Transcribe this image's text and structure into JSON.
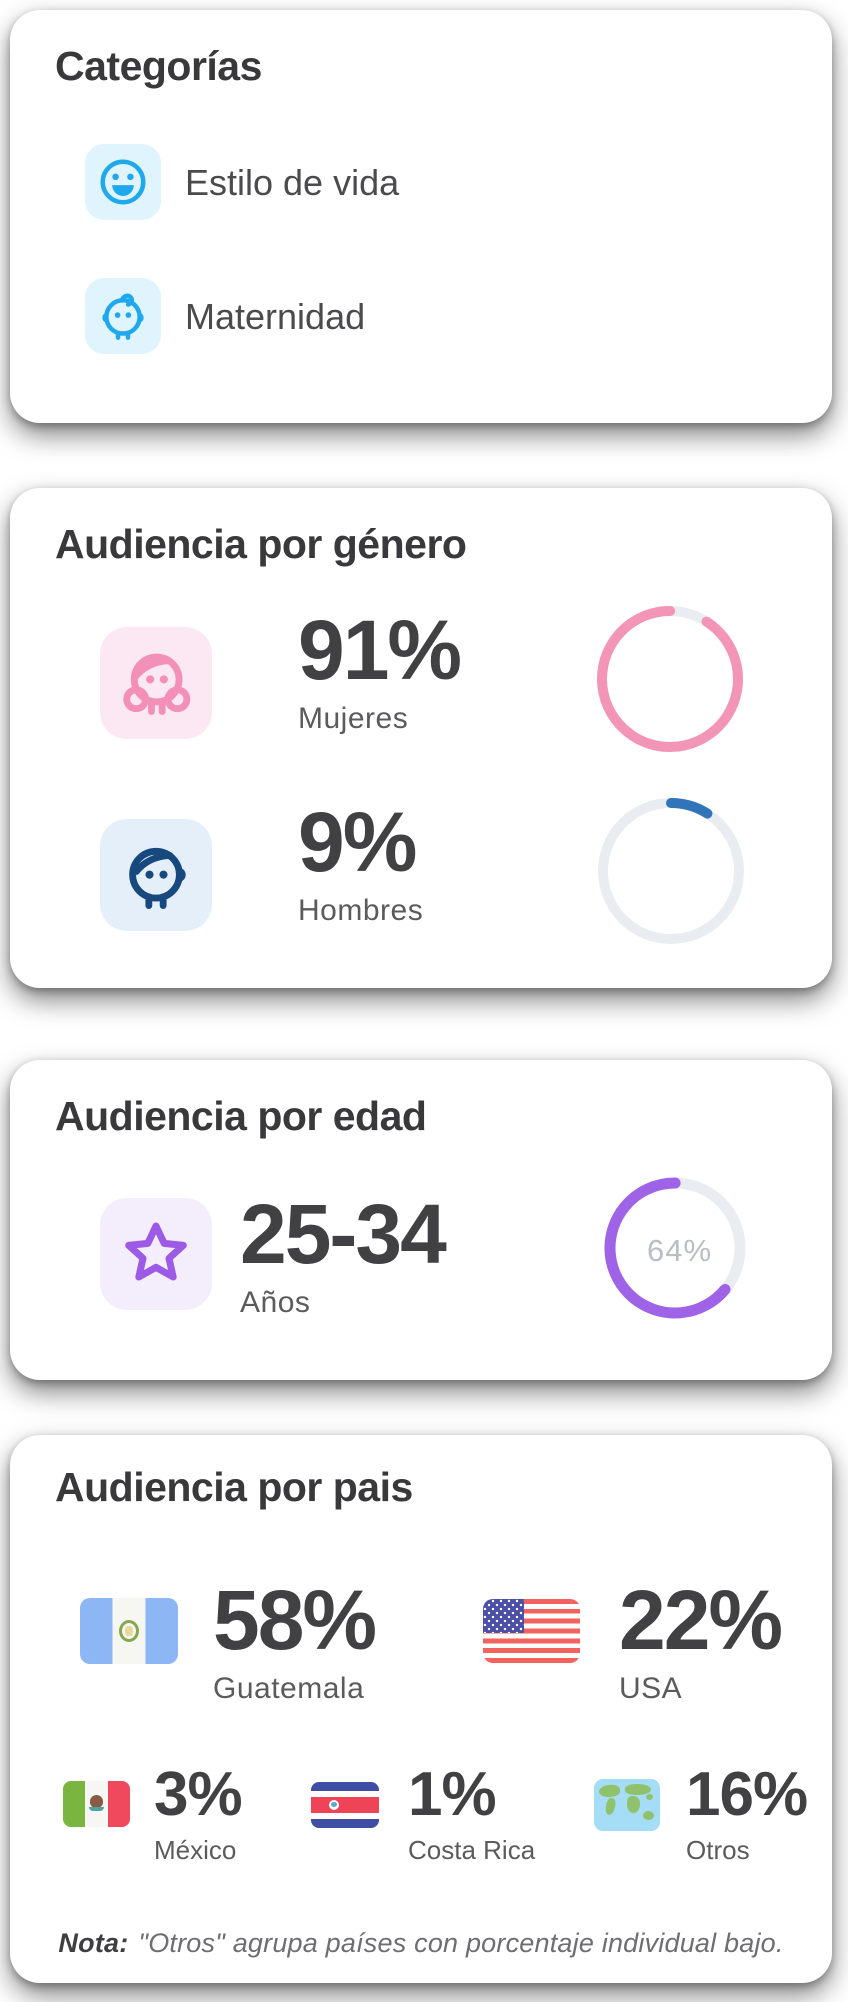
{
  "categories": {
    "title": "Categorías",
    "items": [
      {
        "icon": "smiley-face-icon",
        "label": "Estilo de vida"
      },
      {
        "icon": "baby-face-icon",
        "label": "Maternidad"
      }
    ],
    "icon_color": "#1fa9ec",
    "icon_bg": "#e0f4fe"
  },
  "gender": {
    "title": "Audiencia por género",
    "rows": [
      {
        "icon": "female-face-icon",
        "value": "91%",
        "label": "Mujeres",
        "percent": 91,
        "color": "#f395b7",
        "icon_color": "#f290b8",
        "icon_bg": "#fce8f2"
      },
      {
        "icon": "male-face-icon",
        "value": "9%",
        "label": "Hombres",
        "percent": 9,
        "color": "#3174b9",
        "icon_color": "#17497e",
        "icon_bg": "#e4effa"
      }
    ],
    "track_color": "#e9edf2"
  },
  "age": {
    "title": "Audiencia por edad",
    "range": "25-34",
    "range_label": "Años",
    "icon": "star-icon",
    "icon_color": "#9d5be5",
    "icon_bg": "#f3edfc",
    "donut": {
      "value": "64%",
      "percent": 64,
      "color": "#9f63e8"
    }
  },
  "country": {
    "title": "Audiencia por pais",
    "primary": [
      {
        "flag": "guatemala-flag-icon",
        "value": "58%",
        "label": "Guatemala"
      },
      {
        "flag": "usa-flag-icon",
        "value": "22%",
        "label": "USA"
      }
    ],
    "secondary": [
      {
        "flag": "mexico-flag-icon",
        "value": "3%",
        "label": "México"
      },
      {
        "flag": "costa-rica-flag-icon",
        "value": "1%",
        "label": "Costa Rica"
      },
      {
        "flag": "world-map-icon",
        "value": "16%",
        "label": "Otros"
      }
    ],
    "note_prefix": "Nota:",
    "note_text": "\"Otros\" agrupa países con porcentaje individual bajo."
  }
}
